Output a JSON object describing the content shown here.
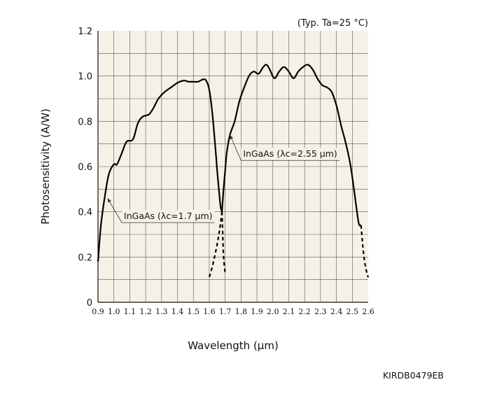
{
  "chart_data": {
    "type": "line",
    "condition_note": "(Typ. Ta=25 °C)",
    "xlabel": "Wavelength (µm)",
    "ylabel": "Photosensitivity (A/W)",
    "figure_code": "KIRDB0479EB",
    "xlim": [
      0.9,
      2.6
    ],
    "ylim": [
      0,
      1.2
    ],
    "x_ticks": [
      "0.9",
      "1.0",
      "1.1",
      "1.2",
      "1.3",
      "1.4",
      "1.5",
      "1.6",
      "1.7",
      "1.8",
      "1.9",
      "2.0",
      "2.1",
      "2.2",
      "2.3",
      "2.4",
      "2.5",
      "2.6"
    ],
    "y_ticks": [
      "0",
      "0.2",
      "0.4",
      "0.6",
      "0.8",
      "1.0",
      "1.2"
    ],
    "grid": true,
    "series": [
      {
        "name": "InGaAs (λc=1.7 µm)",
        "x": [
          0.9,
          0.92,
          0.95,
          0.97,
          1.0,
          1.02,
          1.05,
          1.08,
          1.12,
          1.15,
          1.18,
          1.22,
          1.25,
          1.28,
          1.32,
          1.36,
          1.4,
          1.44,
          1.47,
          1.5,
          1.53,
          1.56,
          1.58,
          1.6,
          1.62,
          1.64,
          1.65,
          1.66,
          1.67,
          1.675,
          1.68
        ],
        "y": [
          0.18,
          0.35,
          0.5,
          0.57,
          0.61,
          0.61,
          0.66,
          0.71,
          0.72,
          0.79,
          0.82,
          0.83,
          0.86,
          0.9,
          0.93,
          0.95,
          0.97,
          0.98,
          0.975,
          0.975,
          0.975,
          0.985,
          0.98,
          0.94,
          0.83,
          0.67,
          0.58,
          0.5,
          0.43,
          0.41,
          0.4
        ],
        "dashed_tail": {
          "x": [
            1.68,
            1.665,
            1.645,
            1.62,
            1.6
          ],
          "y": [
            0.4,
            0.32,
            0.24,
            0.16,
            0.11
          ]
        }
      },
      {
        "name": "InGaAs (λc=2.55 µm)",
        "x": [
          1.68,
          1.69,
          1.7,
          1.71,
          1.73,
          1.76,
          1.79,
          1.82,
          1.85,
          1.88,
          1.91,
          1.94,
          1.96,
          1.98,
          2.01,
          2.04,
          2.07,
          2.1,
          2.13,
          2.16,
          2.19,
          2.22,
          2.25,
          2.28,
          2.31,
          2.34,
          2.37,
          2.4,
          2.43,
          2.46,
          2.49,
          2.52,
          2.54,
          2.555
        ],
        "y": [
          0.4,
          0.5,
          0.58,
          0.66,
          0.74,
          0.8,
          0.89,
          0.95,
          1.0,
          1.02,
          1.01,
          1.04,
          1.05,
          1.03,
          0.99,
          1.02,
          1.04,
          1.02,
          0.99,
          1.02,
          1.04,
          1.05,
          1.03,
          0.99,
          0.96,
          0.95,
          0.93,
          0.87,
          0.78,
          0.7,
          0.6,
          0.45,
          0.35,
          0.34
        ],
        "dashed_heads": [
          {
            "x": [
              1.68,
              1.685,
              1.69,
              1.7
            ],
            "y": [
              0.4,
              0.3,
              0.2,
              0.13
            ]
          },
          {
            "x": [
              2.555,
              2.57,
              2.585,
              2.6
            ],
            "y": [
              0.34,
              0.22,
              0.15,
              0.11
            ]
          }
        ]
      }
    ],
    "annotations": [
      {
        "text": "InGaAs (λc=1.7 µm)",
        "points_to": [
          0.96,
          0.46
        ],
        "label_at": [
          1.05,
          0.38
        ]
      },
      {
        "text": "InGaAs (λc=2.55 µm)",
        "points_to": [
          1.73,
          0.74
        ],
        "label_at": [
          1.8,
          0.655
        ]
      }
    ]
  }
}
